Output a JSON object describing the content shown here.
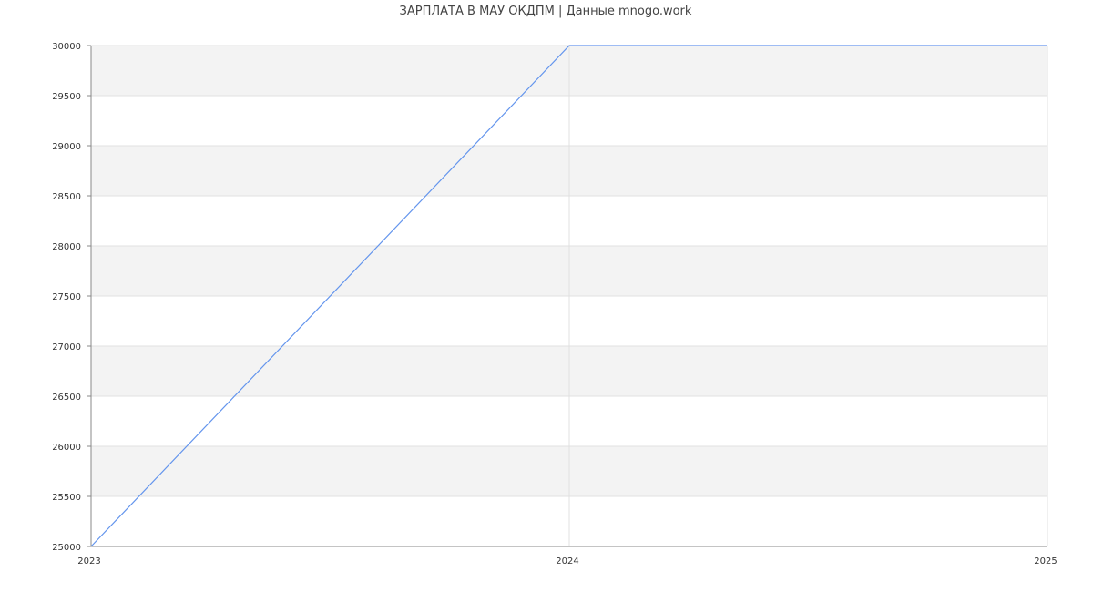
{
  "chart_data": {
    "type": "line",
    "title": "ЗАРПЛАТА В МАУ ОКДПМ | Данные mnogo.work",
    "xlabel": "",
    "ylabel": "",
    "x": [
      2023,
      2024,
      2025
    ],
    "x_tick_labels": [
      "2023",
      "2024",
      "2025"
    ],
    "xlim": [
      2023,
      2025
    ],
    "ylim": [
      25000,
      30000
    ],
    "y_ticks": [
      25000,
      25500,
      26000,
      26500,
      27000,
      27500,
      28000,
      28500,
      29000,
      29500,
      30000
    ],
    "series": [
      {
        "values": [
          25000,
          30000,
          30000
        ],
        "color": "#6495ed"
      }
    ],
    "grid": true,
    "band_color": "#f3f3f3",
    "grid_color": "#e0e0e0",
    "axis_color": "#888888"
  }
}
